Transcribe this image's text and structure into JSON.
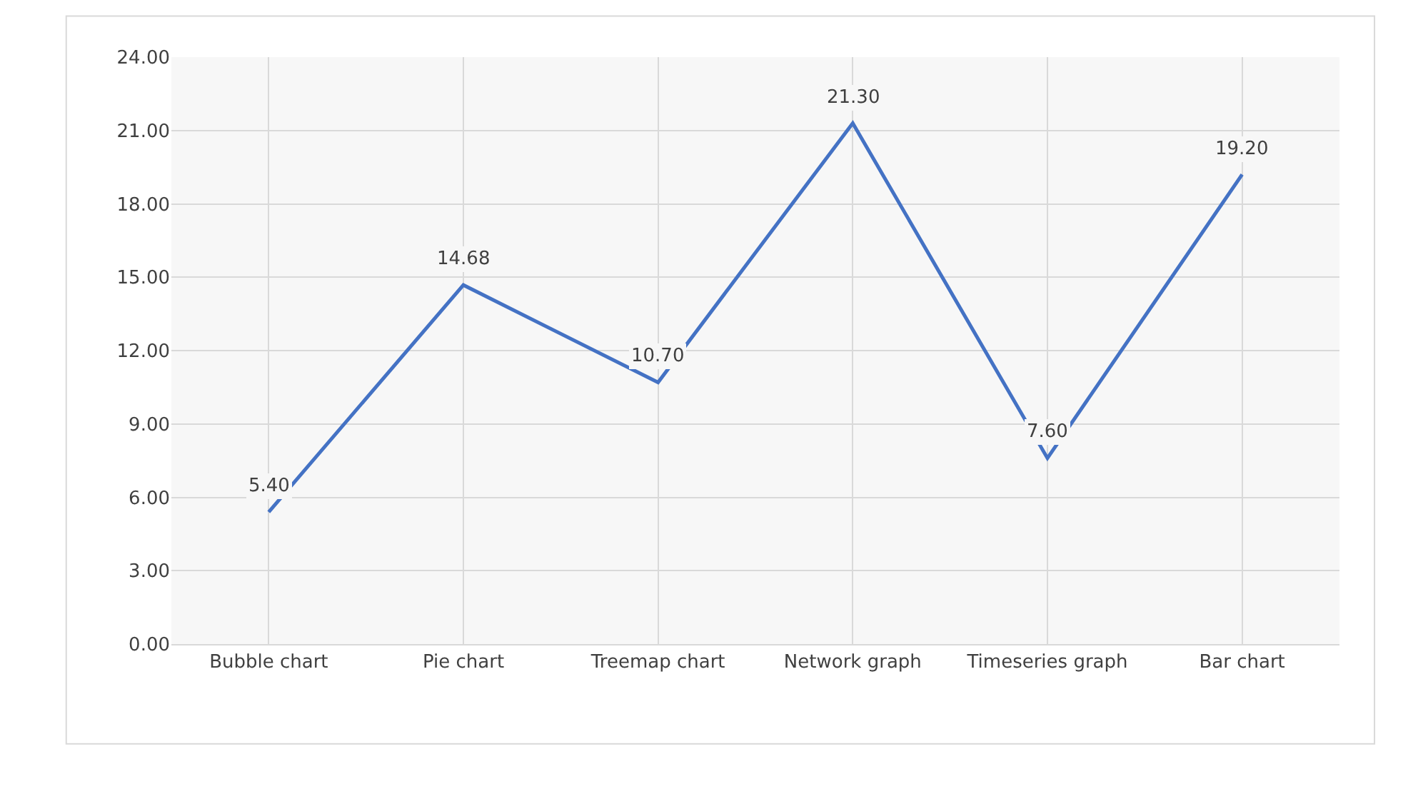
{
  "chart_data": {
    "type": "line",
    "categories": [
      "Bubble chart",
      "Pie chart",
      "Treemap chart",
      "Network graph",
      "Timeseries graph",
      "Bar chart"
    ],
    "series": [
      {
        "color": "#4472c4",
        "values": [
          5.4,
          14.68,
          10.7,
          21.3,
          7.6,
          19.2
        ],
        "value_labels": [
          "5.40",
          "14.68",
          "10.70",
          "21.30",
          "7.60",
          "19.20"
        ]
      }
    ],
    "ylim": [
      0,
      24
    ],
    "yticks": [
      {
        "value": 0,
        "label": "0.00"
      },
      {
        "value": 3,
        "label": "3.00"
      },
      {
        "value": 6,
        "label": "6.00"
      },
      {
        "value": 9,
        "label": "9.00"
      },
      {
        "value": 12,
        "label": "12.00"
      },
      {
        "value": 15,
        "label": "15.00"
      },
      {
        "value": 18,
        "label": "18.00"
      },
      {
        "value": 21,
        "label": "21.00"
      },
      {
        "value": 24,
        "label": "24.00"
      }
    ],
    "grid": true,
    "legend": false,
    "marker": "none",
    "line_style": "solid"
  }
}
